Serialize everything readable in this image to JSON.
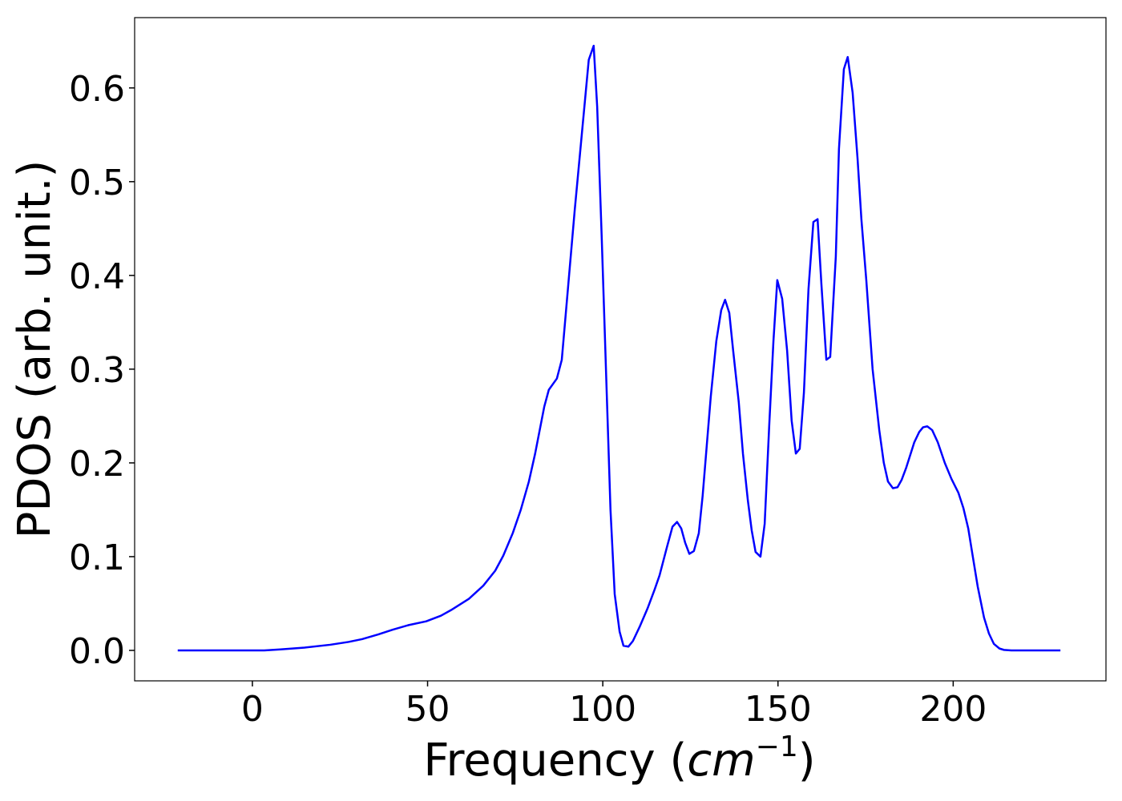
{
  "chart_data": {
    "type": "line",
    "xlabel": [
      "Frequency (",
      "cm",
      "−1",
      ")"
    ],
    "ylabel": "PDOS (arb. unit.)",
    "xlim": [
      -33.6,
      243.6
    ],
    "ylim": [
      -0.0325,
      0.675
    ],
    "xticks": [
      0,
      50,
      100,
      150,
      200
    ],
    "yticks": [
      {
        "value": 0,
        "label": "0.0"
      },
      0.1,
      0.2,
      0.3,
      0.4,
      0.5,
      0.6
    ],
    "x": [
      -21.3,
      3.4,
      8,
      14.9,
      22.2,
      27.4,
      31.3,
      35.9,
      40,
      44.6,
      49.6,
      53.8,
      56.7,
      61.8,
      65.9,
      69.3,
      71.6,
      74.3,
      76.6,
      78.9,
      80.7,
      83.3,
      84.6,
      86.9,
      88.3,
      92,
      96,
      97.4,
      98.4,
      99.7,
      102.2,
      103.4,
      104.8,
      105.9,
      107.3,
      108.6,
      110.5,
      112.8,
      114.8,
      116.2,
      118.3,
      119.9,
      121.2,
      122.4,
      123.5,
      124.7,
      126,
      127.4,
      128.5,
      130.8,
      132.4,
      133.8,
      134.9,
      136.1,
      137.2,
      138.8,
      140,
      141.4,
      142.5,
      143.6,
      145,
      146.2,
      147.5,
      148.7,
      149.8,
      151.2,
      152.6,
      153.9,
      155.1,
      156.2,
      157.4,
      158.7,
      160.1,
      161.3,
      162.4,
      163.8,
      164.9,
      166.5,
      167.4,
      168.8,
      169.9,
      171.3,
      172.7,
      173.8,
      175.2,
      177,
      178.9,
      180.2,
      181.4,
      182.8,
      184.1,
      185.3,
      186.6,
      188.9,
      190.3,
      191.4,
      192.6,
      194,
      195.6,
      197.6,
      199.5,
      201.5,
      202.9,
      204.3,
      205.6,
      207,
      208.8,
      210.2,
      211.6,
      213.2,
      214.5,
      216.6,
      230.6
    ],
    "series": [
      {
        "color": "#0000ff",
        "values": [
          0,
          0,
          0.001,
          0.003,
          0.006,
          0.009,
          0.012,
          0.017,
          0.022,
          0.027,
          0.031,
          0.037,
          0.043,
          0.055,
          0.069,
          0.085,
          0.101,
          0.125,
          0.15,
          0.18,
          0.21,
          0.26,
          0.278,
          0.29,
          0.31,
          0.47,
          0.63,
          0.645,
          0.58,
          0.44,
          0.15,
          0.06,
          0.02,
          0.005,
          0.004,
          0.01,
          0.025,
          0.045,
          0.065,
          0.08,
          0.11,
          0.132,
          0.137,
          0.13,
          0.115,
          0.103,
          0.106,
          0.125,
          0.165,
          0.27,
          0.33,
          0.363,
          0.374,
          0.36,
          0.32,
          0.265,
          0.21,
          0.16,
          0.128,
          0.105,
          0.1,
          0.135,
          0.24,
          0.33,
          0.395,
          0.375,
          0.32,
          0.245,
          0.21,
          0.215,
          0.275,
          0.385,
          0.457,
          0.46,
          0.39,
          0.31,
          0.313,
          0.42,
          0.535,
          0.62,
          0.633,
          0.595,
          0.525,
          0.46,
          0.395,
          0.3,
          0.235,
          0.2,
          0.18,
          0.173,
          0.174,
          0.182,
          0.195,
          0.222,
          0.233,
          0.238,
          0.239,
          0.235,
          0.222,
          0.2,
          0.183,
          0.168,
          0.152,
          0.13,
          0.1,
          0.068,
          0.035,
          0.018,
          0.007,
          0.002,
          0.0005,
          0,
          0
        ]
      }
    ]
  }
}
